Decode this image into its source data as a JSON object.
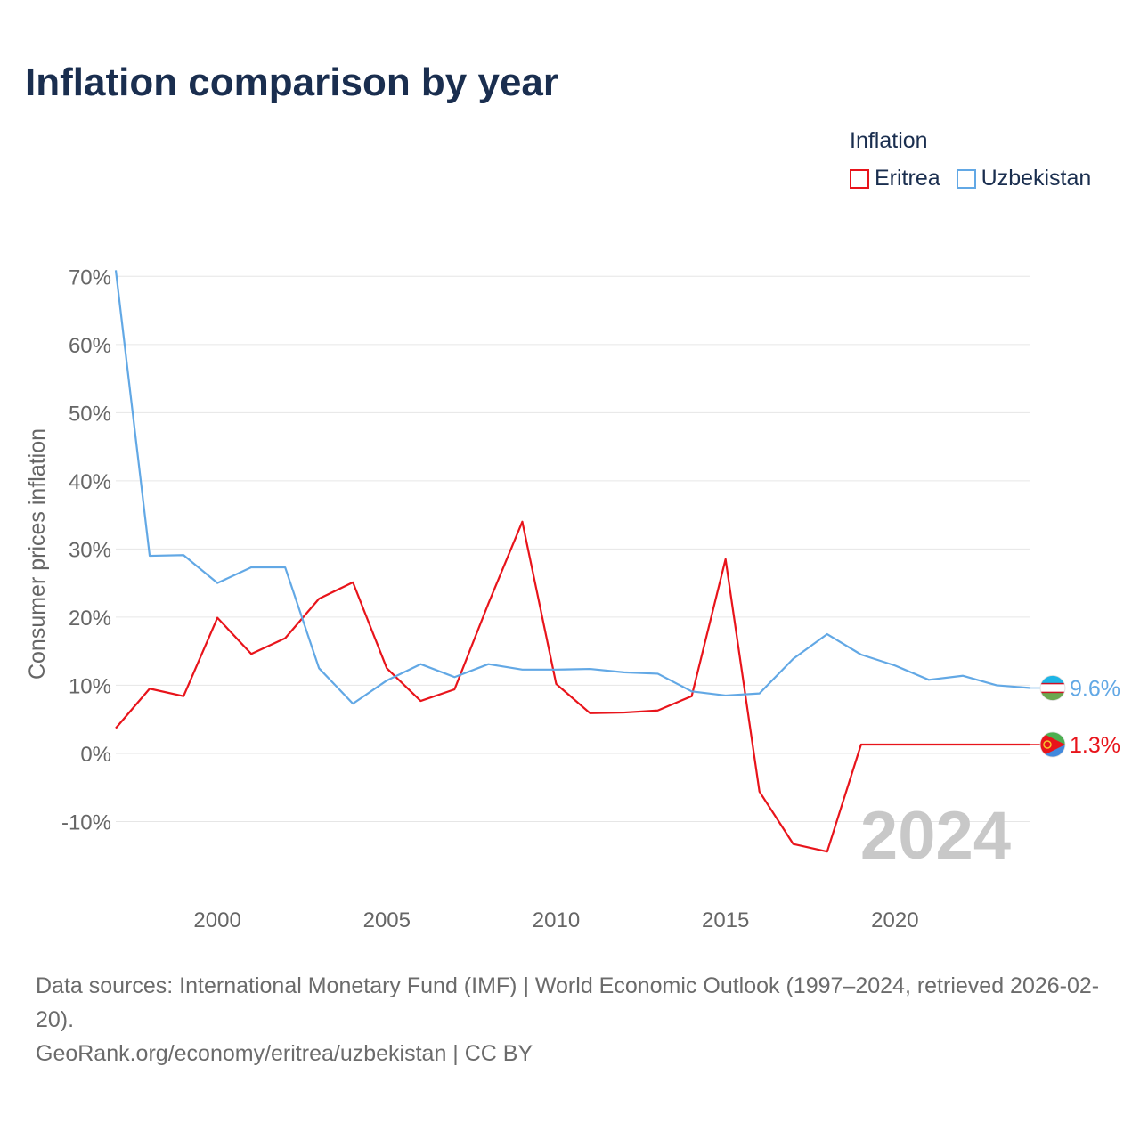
{
  "title": "Inflation comparison by year",
  "footer": {
    "sources": "Data sources: International Monetary Fund (IMF) | World Economic Outlook (1997–2024, retrieved 2026-02-20).",
    "credit": "GeoRank.org/economy/eritrea/uzbekistan | CC BY"
  },
  "chart_data": {
    "type": "line",
    "title": "Inflation comparison by year",
    "legend_title": "Inflation",
    "legend_position": "top-right",
    "ylabel": "Consumer prices inflation",
    "xlabel": "",
    "year_label": "2024",
    "ylim": [
      -20,
      72
    ],
    "xlim": [
      1997,
      2024
    ],
    "y_ticks": [
      70,
      60,
      50,
      40,
      30,
      20,
      10,
      0,
      -10
    ],
    "y_tick_labels": [
      "70%",
      "60%",
      "50%",
      "40%",
      "30%",
      "20%",
      "10%",
      "0%",
      "-10%"
    ],
    "x_ticks": [
      2000,
      2005,
      2010,
      2015,
      2020
    ],
    "x_tick_labels": [
      "2000",
      "2005",
      "2010",
      "2015",
      "2020"
    ],
    "x": [
      1997,
      1998,
      1999,
      2000,
      2001,
      2002,
      2003,
      2004,
      2005,
      2006,
      2007,
      2008,
      2009,
      2010,
      2011,
      2012,
      2013,
      2014,
      2015,
      2016,
      2017,
      2018,
      2019,
      2020,
      2021,
      2022,
      2023,
      2024
    ],
    "series": [
      {
        "name": "Eritrea",
        "color": "#e8141b",
        "end_label": "1.3%",
        "values": [
          3.7,
          9.5,
          8.4,
          19.9,
          14.6,
          16.9,
          22.7,
          25.1,
          12.5,
          7.7,
          9.4,
          22.0,
          34.0,
          10.2,
          5.9,
          6.0,
          6.3,
          8.4,
          28.5,
          -5.6,
          -13.3,
          -14.4,
          1.3,
          1.3,
          1.3,
          1.3,
          1.3,
          1.3
        ]
      },
      {
        "name": "Uzbekistan",
        "color": "#62a8e5",
        "end_label": "9.6%",
        "values": [
          70.9,
          29.0,
          29.1,
          25.0,
          27.3,
          27.3,
          12.5,
          7.3,
          10.7,
          13.1,
          11.2,
          13.1,
          12.3,
          12.3,
          12.4,
          11.9,
          11.7,
          9.1,
          8.5,
          8.8,
          13.9,
          17.5,
          14.5,
          12.9,
          10.8,
          11.4,
          10.0,
          9.6
        ]
      }
    ]
  }
}
